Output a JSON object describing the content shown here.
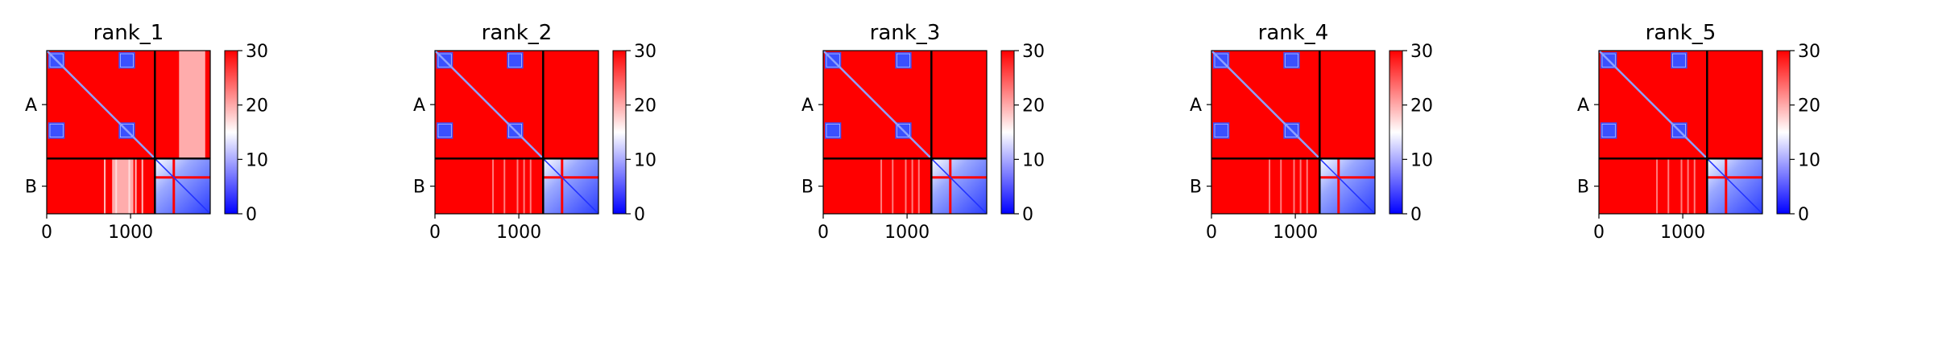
{
  "chart_data": [
    {
      "type": "heatmap",
      "title": "rank_1",
      "x_ticks": [
        "0",
        "1000"
      ],
      "y_ticks": [
        "A",
        "B"
      ],
      "colorbar_ticks": [
        "0",
        "10",
        "20",
        "30"
      ],
      "vmin": 0,
      "vmax": 30,
      "colormap": "bwr",
      "xlim": [
        0,
        1950
      ],
      "split_at": 1290
    },
    {
      "type": "heatmap",
      "title": "rank_2",
      "x_ticks": [
        "0",
        "1000"
      ],
      "y_ticks": [
        "A",
        "B"
      ],
      "colorbar_ticks": [
        "0",
        "10",
        "20",
        "30"
      ],
      "vmin": 0,
      "vmax": 30,
      "colormap": "bwr",
      "xlim": [
        0,
        1950
      ],
      "split_at": 1290
    },
    {
      "type": "heatmap",
      "title": "rank_3",
      "x_ticks": [
        "0",
        "1000"
      ],
      "y_ticks": [
        "A",
        "B"
      ],
      "colorbar_ticks": [
        "0",
        "10",
        "20",
        "30"
      ],
      "vmin": 0,
      "vmax": 30,
      "colormap": "bwr",
      "xlim": [
        0,
        1950
      ],
      "split_at": 1290
    },
    {
      "type": "heatmap",
      "title": "rank_4",
      "x_ticks": [
        "0",
        "1000"
      ],
      "y_ticks": [
        "A",
        "B"
      ],
      "colorbar_ticks": [
        "0",
        "10",
        "20",
        "30"
      ],
      "vmin": 0,
      "vmax": 30,
      "colormap": "bwr",
      "xlim": [
        0,
        1950
      ],
      "split_at": 1290
    },
    {
      "type": "heatmap",
      "title": "rank_5",
      "x_ticks": [
        "0",
        "1000"
      ],
      "y_ticks": [
        "A",
        "B"
      ],
      "colorbar_ticks": [
        "0",
        "10",
        "20",
        "30"
      ],
      "vmin": 0,
      "vmax": 30,
      "colormap": "bwr",
      "xlim": [
        0,
        1950
      ],
      "split_at": 1290
    }
  ],
  "colors": {
    "high": "#ff0000",
    "mid": "#ffffff",
    "low": "#0000ff",
    "divider": "#000000"
  }
}
